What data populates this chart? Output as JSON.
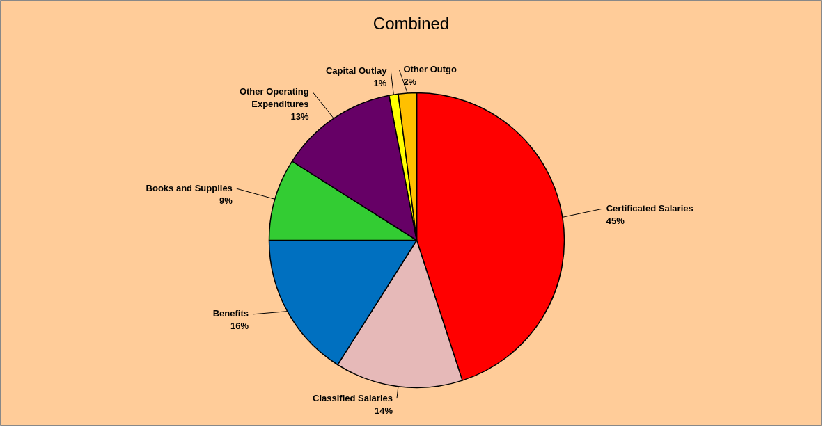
{
  "chart_data": {
    "type": "pie",
    "title": "Combined",
    "categories": [
      "Certificated Salaries",
      "Classified Salaries",
      "Benefits",
      "Books and Supplies",
      "Other Operating Expenditures",
      "Capital Outlay",
      "Other Outgo"
    ],
    "values": [
      45,
      14,
      16,
      9,
      13,
      1,
      2
    ],
    "colors": [
      "#ff0000",
      "#e6b9b8",
      "#0070c0",
      "#33cc33",
      "#660066",
      "#ffff00",
      "#ffc000"
    ],
    "value_labels": [
      "45%",
      "14%",
      "16%",
      "9%",
      "13%",
      "1%",
      "2%"
    ]
  }
}
